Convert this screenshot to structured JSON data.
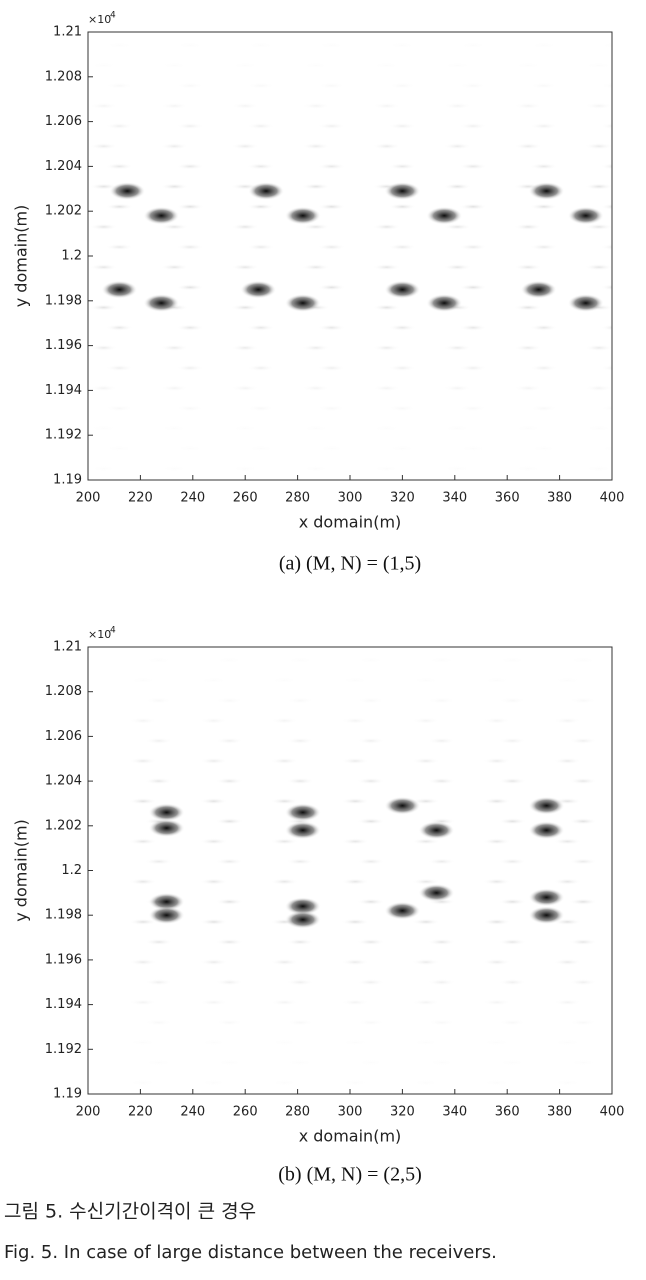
{
  "chart_data": [
    {
      "type": "heatmap",
      "xlabel": "x domain(m)",
      "ylabel": "y domain(m)",
      "multiplier": "×10",
      "multiplier_power": "4",
      "caption": "(a)  (M, N) = (1,5)",
      "xlim": [
        200,
        400
      ],
      "xticks": [
        200,
        220,
        240,
        260,
        280,
        300,
        320,
        340,
        360,
        380,
        400
      ],
      "ylim": [
        1.19,
        1.21
      ],
      "yticks": [
        1.19,
        1.192,
        1.194,
        1.196,
        1.198,
        1.2,
        1.202,
        1.204,
        1.206,
        1.208,
        1.21
      ]
    },
    {
      "type": "heatmap",
      "xlabel": "x domain(m)",
      "ylabel": "y domain(m)",
      "multiplier": "×10",
      "multiplier_power": "4",
      "caption": "(b)  (M, N) = (2,5)",
      "xlim": [
        200,
        400
      ],
      "xticks": [
        200,
        220,
        240,
        260,
        280,
        300,
        320,
        340,
        360,
        380,
        400
      ],
      "ylim": [
        1.19,
        1.21
      ],
      "yticks": [
        1.19,
        1.192,
        1.194,
        1.196,
        1.198,
        1.2,
        1.202,
        1.204,
        1.206,
        1.208,
        1.21
      ]
    }
  ],
  "figure_caption": {
    "korean": "그림 5. 수신기간이격이 큰 경우",
    "english": "Fig. 5. In case of large distance between the receivers."
  }
}
